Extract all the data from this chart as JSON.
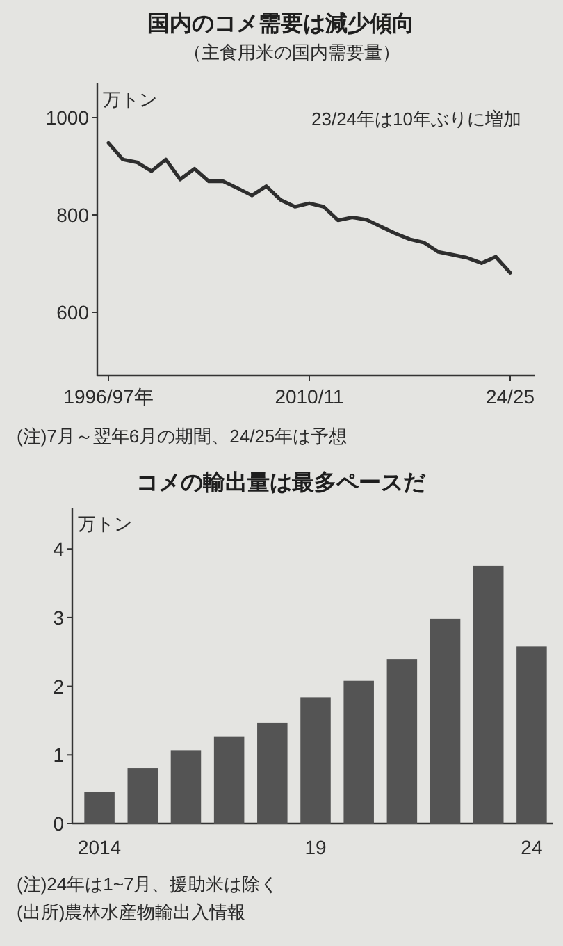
{
  "chart_data": [
    {
      "type": "line",
      "title": "国内のコメ需要は減少傾向",
      "subtitle": "（主食用米の国内需要量）",
      "ylabel": "万トン",
      "categories": [
        "1996/97年",
        null,
        null,
        null,
        null,
        null,
        null,
        null,
        null,
        null,
        null,
        null,
        null,
        null,
        "2010/11",
        null,
        null,
        null,
        null,
        null,
        null,
        null,
        null,
        null,
        null,
        null,
        null,
        null,
        "24/25"
      ],
      "series": [
        {
          "color": "#2e2e2e",
          "values": [
            948,
            914,
            908,
            890,
            914,
            873,
            895,
            869,
            869,
            855,
            840,
            859,
            831,
            817,
            824,
            817,
            789,
            795,
            790,
            776,
            762,
            750,
            743,
            724,
            718,
            712,
            701,
            714,
            681
          ]
        }
      ],
      "ylim": [
        470,
        1070
      ],
      "yticks": [
        600,
        800,
        1000
      ],
      "annotations": [
        "23/24年は10年ぶりに増加",
        "(注)7月～翌年6月の期間、24/25年は予想"
      ]
    },
    {
      "type": "bar",
      "title": "コメの輸出量は最多ペースだ",
      "ylabel": "万トン",
      "categories": [
        "2014",
        null,
        null,
        null,
        null,
        "19",
        null,
        null,
        null,
        null,
        "24"
      ],
      "series": [
        {
          "color": "#545454",
          "values": [
            0.46,
            0.81,
            1.07,
            1.27,
            1.47,
            1.84,
            2.08,
            2.39,
            2.98,
            3.76,
            2.58
          ]
        }
      ],
      "ylim": [
        0,
        4.6
      ],
      "yticks": [
        0,
        1,
        2,
        3,
        4
      ],
      "annotations": [
        "(注)24年は1~7月、援助米は除く",
        "(出所)農林水産物輸出入情報"
      ]
    }
  ]
}
